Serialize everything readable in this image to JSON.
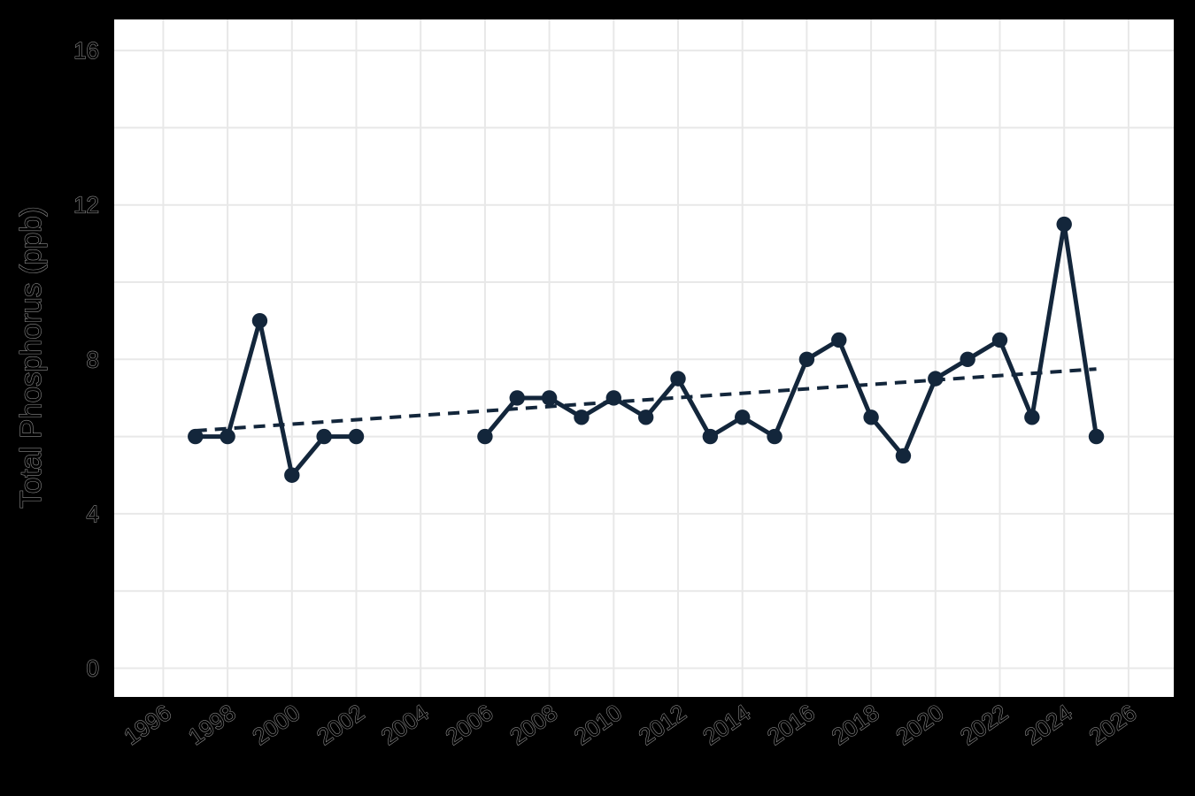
{
  "chart_data": {
    "type": "line",
    "title": "",
    "xlabel": "",
    "ylabel": "Total Phosphorus (ppb)",
    "x_tick_years": [
      1996,
      1998,
      2000,
      2002,
      2004,
      2006,
      2008,
      2010,
      2012,
      2014,
      2016,
      2018,
      2020,
      2022,
      2024,
      2026
    ],
    "x_tick_labels": [
      "1996",
      "1998",
      "2000",
      "2002",
      "2004",
      "2006",
      "2008",
      "2010",
      "2012",
      "2014",
      "2016",
      "2018",
      "2020",
      "2022",
      "2024",
      "2026"
    ],
    "y_tick_values": [
      0,
      4,
      8,
      12,
      16
    ],
    "y_tick_labels": [
      "0",
      "4",
      "8",
      "12",
      "16"
    ],
    "y_gridline_values": [
      0,
      2,
      4,
      6,
      8,
      10,
      12,
      14,
      16
    ],
    "x_gridline_years": [
      1996,
      1998,
      2000,
      2002,
      2004,
      2006,
      2008,
      2010,
      2012,
      2014,
      2016,
      2018,
      2020,
      2022,
      2024,
      2026
    ],
    "xlim": [
      1994.5,
      2027.5
    ],
    "ylim": [
      -0.8,
      16.8
    ],
    "grid": "on",
    "legend": "none",
    "series": [
      {
        "name": "Total Phosphorus",
        "style": "line+markers",
        "points": [
          [
            1997,
            6.0
          ],
          [
            1998,
            6.0
          ],
          [
            1999,
            9.0
          ],
          [
            2000,
            5.0
          ],
          [
            2001,
            6.0
          ],
          [
            2002,
            6.0
          ],
          [
            2006,
            6.0
          ],
          [
            2007,
            7.0
          ],
          [
            2008,
            7.0
          ],
          [
            2009,
            6.5
          ],
          [
            2010,
            7.0
          ],
          [
            2011,
            6.5
          ],
          [
            2012,
            7.5
          ],
          [
            2013,
            6.0
          ],
          [
            2014,
            6.5
          ],
          [
            2015,
            6.0
          ],
          [
            2016,
            8.0
          ],
          [
            2017,
            8.5
          ],
          [
            2018,
            6.5
          ],
          [
            2019,
            5.5
          ],
          [
            2020,
            7.5
          ],
          [
            2021,
            8.0
          ],
          [
            2022,
            8.5
          ],
          [
            2023,
            6.5
          ],
          [
            2024,
            11.5
          ],
          [
            2025,
            6.0
          ]
        ]
      }
    ],
    "trend_line": {
      "style": "dashed",
      "x": [
        1997,
        2025
      ],
      "y": [
        6.15,
        7.75
      ]
    },
    "colors": {
      "series": "#13263B",
      "trend": "#13263B",
      "gridline": "#E8E8E8",
      "plot_bg": "#FFFFFF",
      "page_bg": "#000000",
      "axis_text_fill": "#000000",
      "axis_text_stroke": "#8A8A8A"
    }
  }
}
